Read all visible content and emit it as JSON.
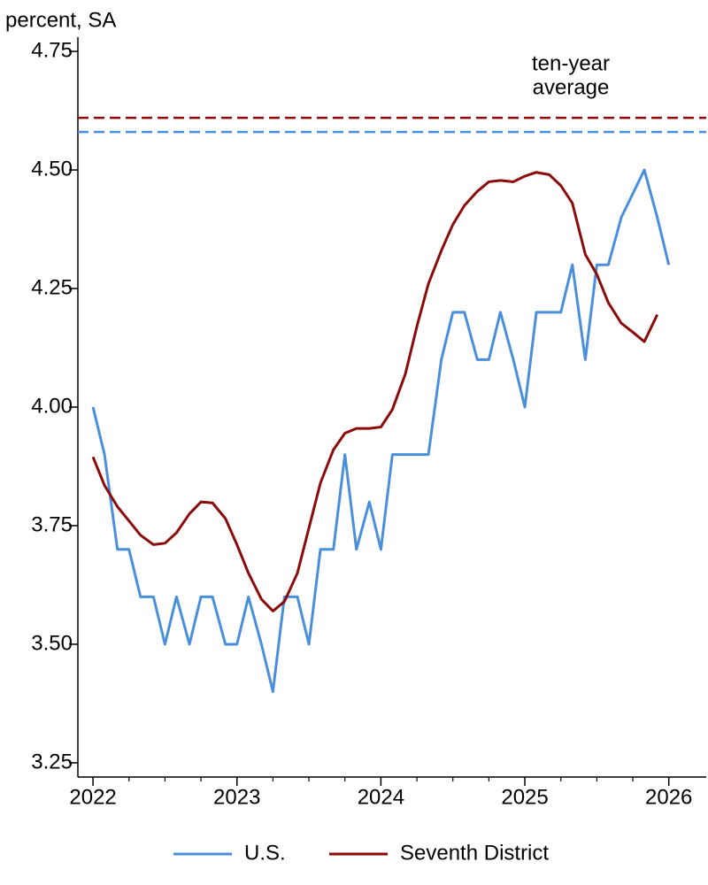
{
  "chart_data": {
    "type": "line",
    "y_label": "percent, SA",
    "annotation": [
      "ten-year",
      "average"
    ],
    "xlim": [
      2021.895,
      2026.26
    ],
    "xticks": [
      2022,
      2023,
      2024,
      2025,
      2026
    ],
    "ylim": [
      3.22,
      4.78
    ],
    "yticks": [
      3.25,
      {
        "value": 3.5,
        "label": "3.50"
      },
      3.75,
      {
        "value": 4,
        "label": "4.00"
      },
      4.25,
      {
        "value": 4.5,
        "label": "4.50"
      },
      4.75
    ],
    "hlines": [
      {
        "value": 4.61,
        "color": "#8b0a0a"
      },
      {
        "value": 4.58,
        "color": "#4a8fdc"
      }
    ],
    "legend": "bottom",
    "series": [
      {
        "name": "U.S.",
        "color": "#4a8fdc",
        "x": [
          2022,
          2022.08,
          2022.17,
          2022.25,
          2022.33,
          2022.42,
          2022.5,
          2022.58,
          2022.67,
          2022.75,
          2022.83,
          2022.92,
          2023,
          2023.08,
          2023.17,
          2023.25,
          2023.33,
          2023.42,
          2023.5,
          2023.58,
          2023.67,
          2023.75,
          2023.83,
          2023.92,
          2024,
          2024.08,
          2024.17,
          2024.25,
          2024.33,
          2024.42,
          2024.5,
          2024.58,
          2024.67,
          2024.75,
          2024.83,
          2024.92,
          2025,
          2025.08,
          2025.17,
          2025.25,
          2025.33,
          2025.42,
          2025.5,
          2025.58,
          2025.67,
          2025.83,
          2025.92,
          2026
        ],
        "values": [
          4.0,
          3.9,
          3.7,
          3.7,
          3.6,
          3.6,
          3.5,
          3.6,
          3.5,
          3.6,
          3.6,
          3.5,
          3.5,
          3.6,
          3.5,
          3.4,
          3.6,
          3.6,
          3.5,
          3.7,
          3.7,
          3.9,
          3.7,
          3.8,
          3.7,
          3.9,
          3.9,
          3.9,
          3.9,
          4.1,
          4.2,
          4.2,
          4.1,
          4.1,
          4.2,
          4.1,
          4.0,
          4.2,
          4.2,
          4.2,
          4.3,
          4.1,
          4.3,
          4.3,
          4.4,
          4.5,
          4.4,
          4.3
        ]
      },
      {
        "name": "Seventh District",
        "color": "#8b0a0a",
        "x": [
          2022,
          2022.08,
          2022.17,
          2022.25,
          2022.33,
          2022.42,
          2022.5,
          2022.58,
          2022.67,
          2022.75,
          2022.83,
          2022.92,
          2023,
          2023.08,
          2023.17,
          2023.25,
          2023.33,
          2023.42,
          2023.5,
          2023.58,
          2023.67,
          2023.75,
          2023.83,
          2023.92,
          2024,
          2024.08,
          2024.17,
          2024.25,
          2024.33,
          2024.42,
          2024.5,
          2024.58,
          2024.67,
          2024.75,
          2024.83,
          2024.92,
          2025,
          2025.08,
          2025.17,
          2025.25,
          2025.33,
          2025.42,
          2025.5,
          2025.58,
          2025.67,
          2025.75,
          2025.83,
          2025.92
        ],
        "values": [
          3.895,
          3.835,
          3.79,
          3.76,
          3.73,
          3.71,
          3.713,
          3.735,
          3.775,
          3.8,
          3.798,
          3.765,
          3.71,
          3.65,
          3.595,
          3.57,
          3.59,
          3.65,
          3.745,
          3.84,
          3.91,
          3.945,
          3.955,
          3.955,
          3.958,
          3.995,
          4.07,
          4.17,
          4.26,
          4.33,
          4.385,
          4.425,
          4.455,
          4.475,
          4.478,
          4.475,
          4.487,
          4.495,
          4.49,
          4.467,
          4.43,
          4.322,
          4.28,
          4.22,
          4.177,
          4.158,
          4.138,
          4.195
        ]
      }
    ]
  }
}
